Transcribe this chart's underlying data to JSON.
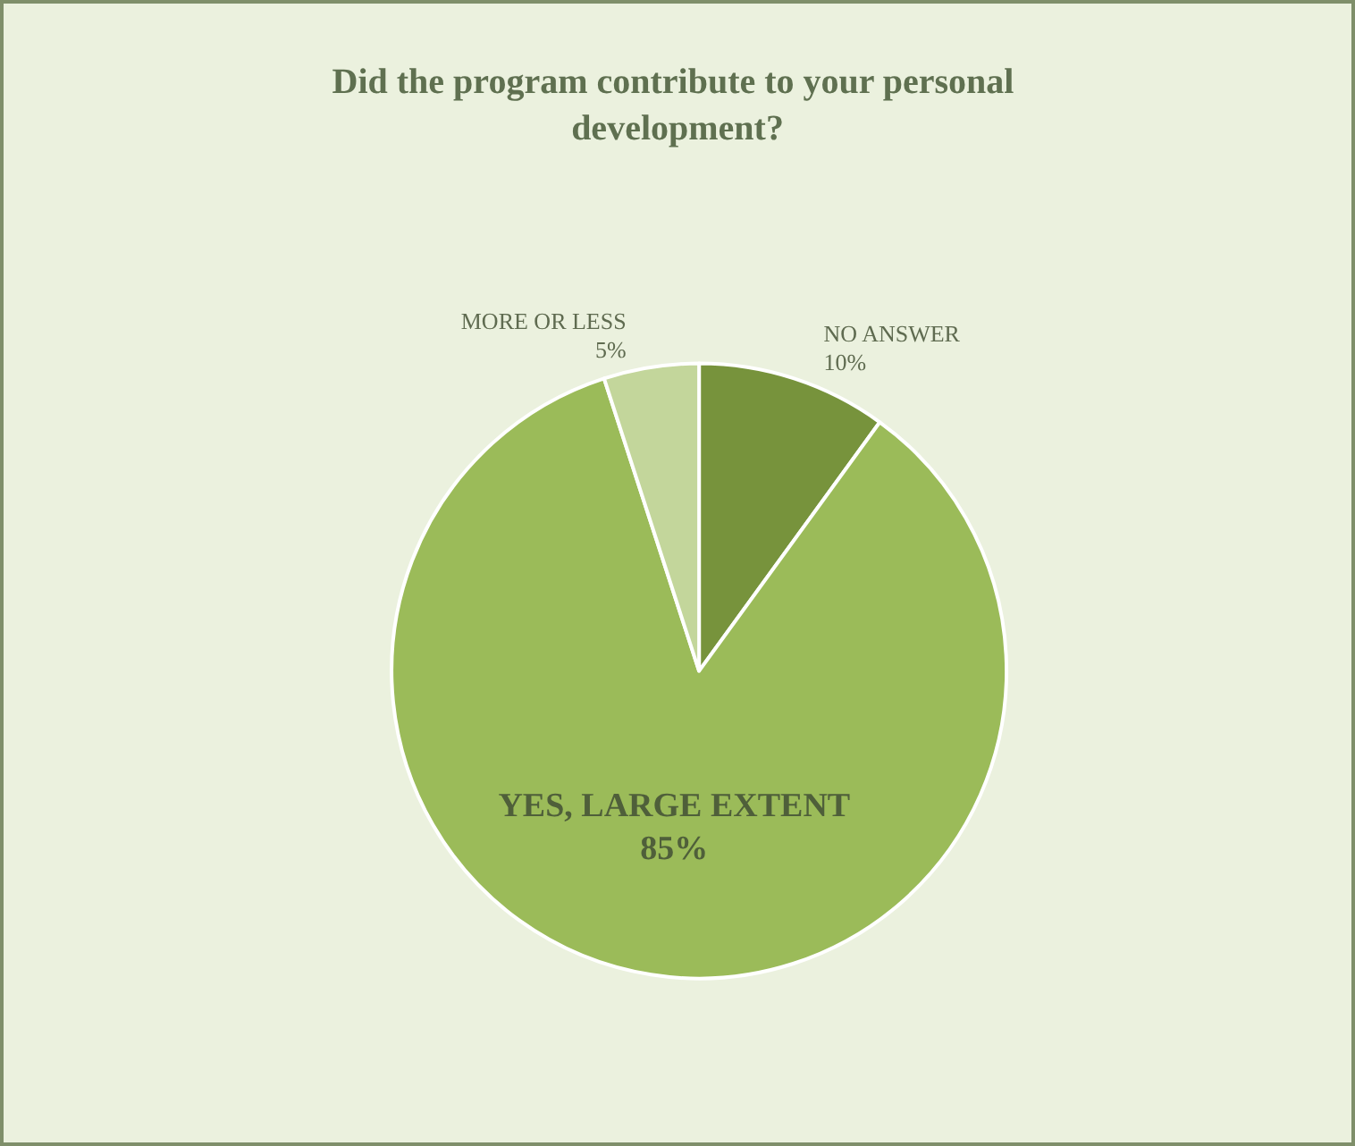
{
  "chart_data": {
    "type": "pie",
    "title": "Did the program contribute to your personal development?",
    "categories": [
      "NO ANSWER",
      "YES, LARGE EXTENT",
      "MORE OR LESS"
    ],
    "values": [
      10,
      85,
      5
    ],
    "value_labels": [
      "10%",
      "85%",
      "5%"
    ],
    "colors": [
      "#77933c",
      "#9bbb59",
      "#c3d69b"
    ],
    "legend": false
  }
}
